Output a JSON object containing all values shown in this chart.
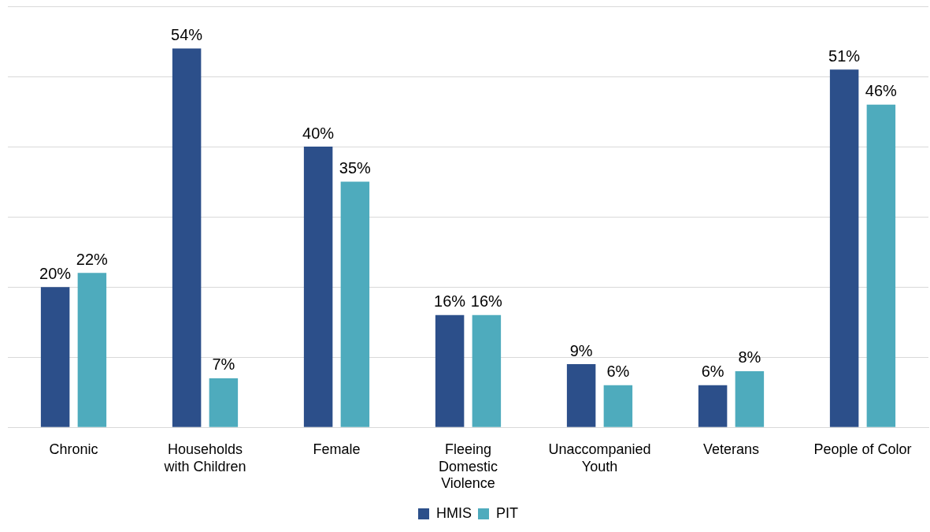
{
  "chart_data": {
    "type": "bar",
    "categories": [
      "Chronic",
      "Households with Children",
      "Female",
      "Fleeing Domestic Violence",
      "Unaccompanied Youth",
      "Veterans",
      "People of Color"
    ],
    "series": [
      {
        "name": "HMIS",
        "color": "#2c4f8a",
        "values": [
          20,
          54,
          40,
          16,
          9,
          6,
          51
        ],
        "value_labels": [
          "20%",
          "54%",
          "40%",
          "16%",
          "9%",
          "6%",
          "51%"
        ]
      },
      {
        "name": "PIT",
        "color": "#4eabbd",
        "values": [
          22,
          7,
          35,
          16,
          6,
          8,
          46
        ],
        "value_labels": [
          "22%",
          "7%",
          "35%",
          "16%",
          "6%",
          "8%",
          "46%"
        ]
      }
    ],
    "grid": "y",
    "tick_labels": "x",
    "legend": "bottom"
  }
}
